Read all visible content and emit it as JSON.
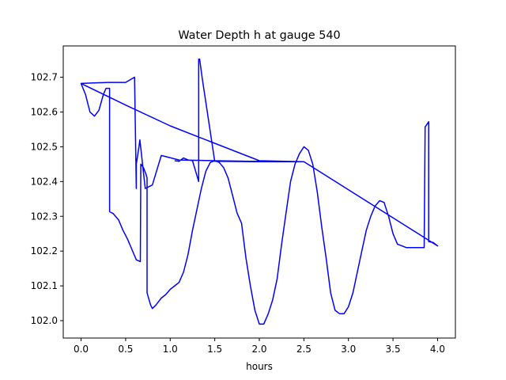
{
  "chart_data": {
    "type": "line",
    "title": "Water Depth h at gauge 540",
    "xlabel": "hours",
    "ylabel": "",
    "xlim": [
      -0.2,
      4.2
    ],
    "ylim": [
      101.95,
      102.79
    ],
    "xticks": [
      0.0,
      0.5,
      1.0,
      1.5,
      2.0,
      2.5,
      3.0,
      3.5,
      4.0
    ],
    "xtick_labels": [
      "0.0",
      "0.5",
      "1.0",
      "1.5",
      "2.0",
      "2.5",
      "3.0",
      "3.5",
      "4.0"
    ],
    "yticks": [
      102.0,
      102.1,
      102.2,
      102.3,
      102.4,
      102.5,
      102.6,
      102.7
    ],
    "ytick_labels": [
      "102.0",
      "102.1",
      "102.2",
      "102.3",
      "102.4",
      "102.5",
      "102.6",
      "102.7"
    ],
    "grid": false,
    "line_color": "#0000ff",
    "series": [
      {
        "x": [
          0.0,
          0.05,
          0.1,
          0.15,
          0.2,
          0.25,
          0.28,
          0.32,
          0.32,
          0.36,
          0.42,
          0.47,
          0.52,
          0.57,
          0.62,
          0.665,
          0.665,
          0.67,
          0.7,
          0.73,
          0.74,
          0.74,
          0.78,
          0.8,
          0.84,
          0.87,
          0.9,
          0.95,
          1.0,
          1.05,
          1.1,
          1.15,
          1.2,
          1.25,
          1.3,
          1.35,
          1.4,
          1.45,
          1.5,
          1.55,
          1.6,
          1.65,
          1.7,
          1.75,
          1.8,
          1.8,
          1.85,
          1.9,
          1.95,
          2.0,
          2.05,
          2.1,
          2.15,
          2.2,
          2.25,
          2.3,
          2.35,
          2.4,
          2.45,
          2.5,
          2.55,
          2.6,
          2.65,
          2.7,
          2.75,
          2.8,
          2.85,
          2.9,
          2.95,
          3.0,
          3.05,
          3.1,
          3.15,
          3.2,
          3.25,
          3.3,
          3.35,
          3.4,
          3.45,
          3.5,
          3.55,
          3.6,
          3.65,
          3.7,
          3.75,
          3.8,
          3.85,
          3.86,
          3.86,
          3.9,
          3.9,
          3.95,
          4.0,
          2.5,
          1.9,
          1.5,
          1.1,
          0.9,
          0.8,
          0.72,
          0.66,
          0.65,
          0.62,
          0.62,
          0.6,
          0.5,
          0.4,
          0.3,
          0.0,
          0.0,
          0.5,
          1.0,
          1.5,
          2.0,
          2.5,
          2.0,
          1.5,
          1.36,
          1.36,
          1.33,
          1.32,
          1.32,
          1.25,
          1.2,
          1.15,
          1.1,
          1.05
        ],
        "y": [
          102.682,
          102.65,
          102.6,
          102.588,
          102.605,
          102.65,
          102.668,
          102.668,
          102.313,
          102.308,
          102.29,
          102.26,
          102.235,
          102.205,
          102.175,
          102.17,
          102.17,
          102.45,
          102.44,
          102.42,
          102.41,
          102.08,
          102.045,
          102.035,
          102.045,
          102.055,
          102.065,
          102.075,
          102.09,
          102.1,
          102.11,
          102.14,
          102.19,
          102.26,
          102.32,
          102.38,
          102.43,
          102.455,
          102.46,
          102.455,
          102.44,
          102.41,
          102.36,
          102.31,
          102.28,
          102.28,
          102.18,
          102.1,
          102.03,
          101.99,
          101.99,
          102.02,
          102.06,
          102.12,
          102.22,
          102.31,
          102.4,
          102.45,
          102.48,
          102.5,
          102.49,
          102.45,
          102.37,
          102.27,
          102.18,
          102.08,
          102.03,
          102.02,
          102.02,
          102.04,
          102.08,
          102.14,
          102.2,
          102.26,
          102.3,
          102.33,
          102.345,
          102.34,
          102.3,
          102.25,
          102.22,
          102.215,
          102.21,
          102.21,
          102.21,
          102.21,
          102.21,
          102.557,
          102.557,
          102.572,
          102.227,
          102.225,
          102.215,
          102.457,
          102.458,
          102.46,
          102.462,
          102.475,
          102.39,
          102.38,
          102.52,
          102.5,
          102.45,
          102.38,
          102.7,
          102.685,
          102.685,
          102.685,
          102.682,
          102.682,
          102.62,
          102.56,
          102.51,
          102.46,
          102.457,
          102.457,
          102.458,
          102.695,
          102.695,
          102.752,
          102.752,
          102.4,
          102.46,
          102.462,
          102.468,
          102.458,
          102.46
        ]
      }
    ]
  }
}
